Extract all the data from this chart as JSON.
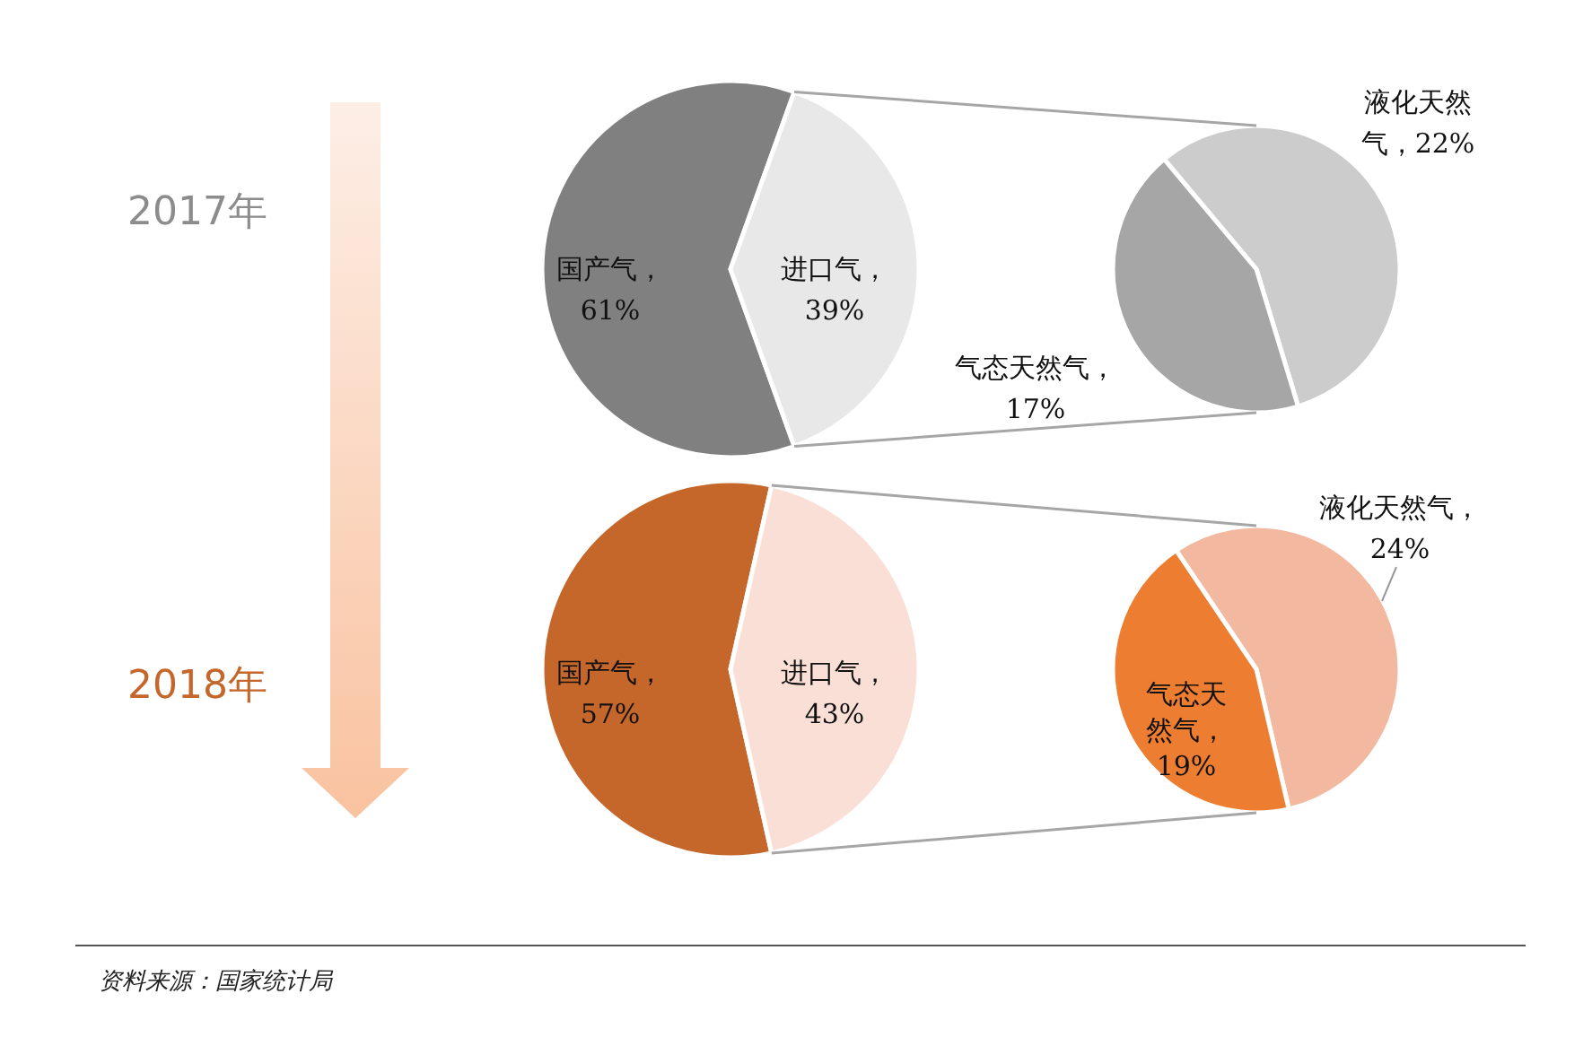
{
  "chart_data": [
    {
      "type": "pie",
      "title": "2017年",
      "categories": [
        "国产气",
        "进口气"
      ],
      "values": [
        61,
        39
      ],
      "colors": [
        "#808080",
        "#e8e8e8"
      ],
      "value_labels": [
        "，61%",
        "，39%"
      ]
    },
    {
      "type": "pie",
      "categories": [
        "液化天然气",
        "气态天然气"
      ],
      "values": [
        22,
        17
      ],
      "colors": [
        "#cccccc",
        "#a6a6a6"
      ],
      "value_labels": [
        "，22%",
        "，17%"
      ]
    },
    {
      "type": "pie",
      "title": "2018年",
      "categories": [
        "国产气",
        "进口气"
      ],
      "values": [
        57,
        43
      ],
      "colors": [
        "#c5662a",
        "#fadfd6"
      ],
      "value_labels": [
        "，57%",
        "，43%"
      ],
      "annotations": [
        "资料来源：国家统计局"
      ]
    },
    {
      "type": "pie",
      "categories": [
        "液化天然气",
        "气态天然气"
      ],
      "values": [
        24,
        19
      ],
      "colors": [
        "#f3b8a0",
        "#ed7d31"
      ],
      "value_labels": [
        "，24%",
        "，19%"
      ]
    }
  ]
}
